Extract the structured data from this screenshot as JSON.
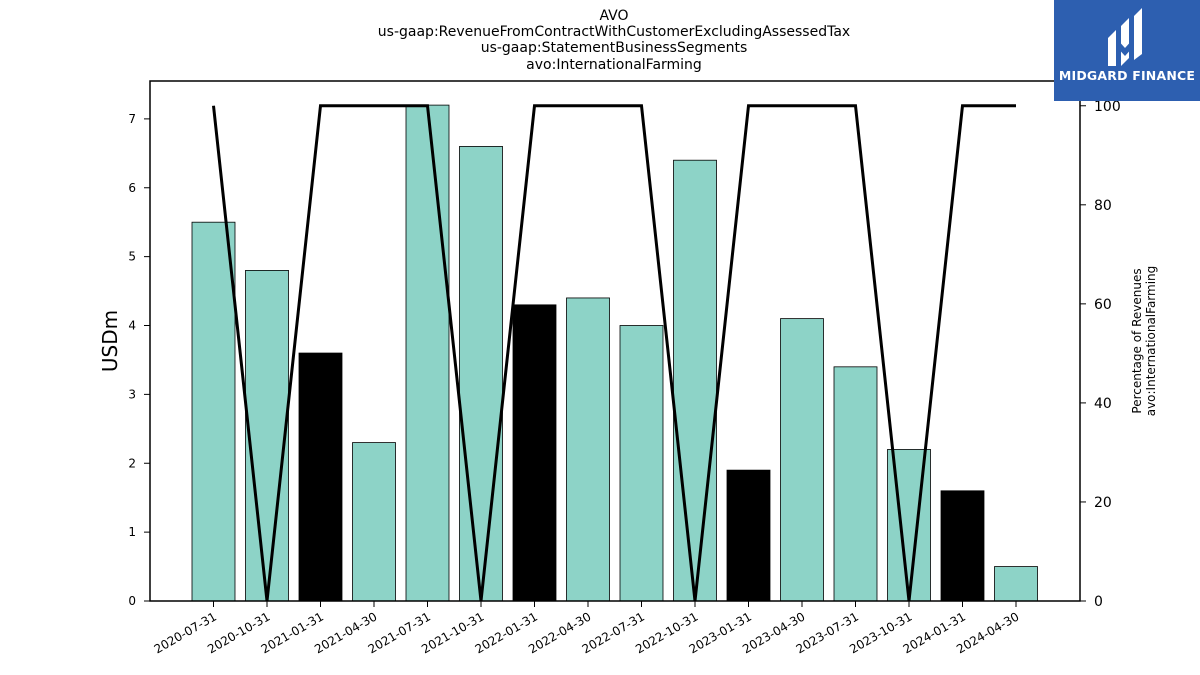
{
  "chart_data": {
    "type": "bar",
    "title_lines": [
      "AVO",
      "us-gaap:RevenueFromContractWithCustomerExcludingAssessedTax",
      "us-gaap:StatementBusinessSegments",
      "avo:InternationalFarming"
    ],
    "categories": [
      "2020-07-31",
      "2020-10-31",
      "2021-01-31",
      "2021-04-30",
      "2021-07-31",
      "2021-10-31",
      "2022-01-31",
      "2022-04-30",
      "2022-07-31",
      "2022-10-31",
      "2023-01-31",
      "2023-04-30",
      "2023-07-31",
      "2023-10-31",
      "2024-01-31",
      "2024-04-30"
    ],
    "values": [
      5.5,
      4.8,
      3.6,
      2.3,
      7.2,
      6.6,
      4.3,
      4.4,
      4.0,
      6.4,
      1.9,
      4.1,
      3.4,
      2.2,
      1.6,
      0.5
    ],
    "bar_colors": [
      "#8dd3c7",
      "#8dd3c7",
      "#000000",
      "#8dd3c7",
      "#8dd3c7",
      "#8dd3c7",
      "#000000",
      "#8dd3c7",
      "#8dd3c7",
      "#8dd3c7",
      "#000000",
      "#8dd3c7",
      "#8dd3c7",
      "#8dd3c7",
      "#000000",
      "#8dd3c7"
    ],
    "ylabel": "USDm",
    "ylim": [
      0,
      7.55
    ],
    "yticks": [
      0,
      1,
      2,
      3,
      4,
      5,
      6,
      7
    ],
    "line_series": {
      "values": [
        100,
        0,
        100,
        100,
        100,
        0,
        100,
        100,
        100,
        0,
        100,
        100,
        100,
        0,
        100,
        100
      ],
      "color": "#000000"
    },
    "y2label_lines": [
      "Percentage of Revenues",
      "avo:InternationalFarming"
    ],
    "y2lim": [
      0,
      105
    ],
    "y2ticks": [
      0,
      20,
      40,
      60,
      80,
      100
    ],
    "grid": false,
    "legend": "none"
  },
  "logo": {
    "text": "MIDGARD FINANCE",
    "background": "#2d5fb0"
  }
}
